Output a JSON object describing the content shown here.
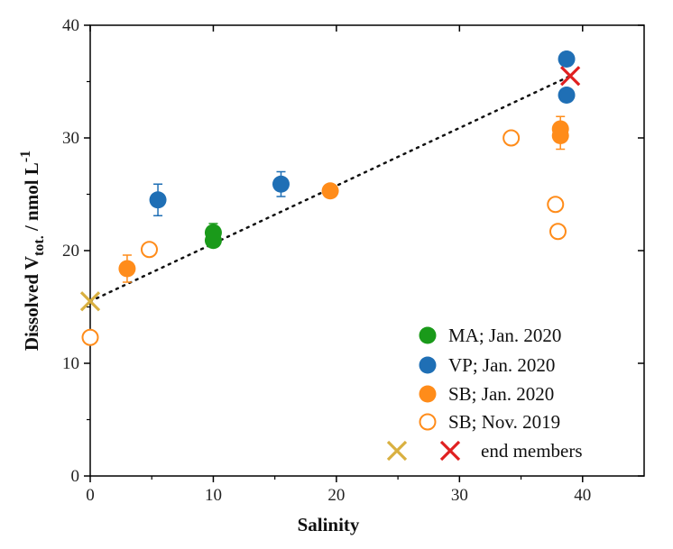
{
  "chart_data": {
    "type": "scatter",
    "xlabel": "Salinity",
    "ylabel": {
      "prefix": "Dissolved V",
      "subscript": "tot.",
      "suffix": " / nmol L",
      "superscript": "-1"
    },
    "xlim": [
      0,
      45
    ],
    "ylim": [
      0,
      40
    ],
    "xticks": [
      0,
      10,
      20,
      30,
      40
    ],
    "yticks": [
      0,
      10,
      20,
      30,
      40
    ],
    "grid": false,
    "legend_position": "bottom-right",
    "colors": {
      "MA": "#1a9a1a",
      "VP": "#1f6fb5",
      "SB": "#ff8c1a",
      "end_land": "#d9b040",
      "end_sea": "#e02020"
    },
    "series": [
      {
        "name": "MA; Jan. 2020",
        "marker": "filled-circle",
        "color": "#1a9a1a",
        "points": [
          {
            "x": 10.0,
            "y": 20.9,
            "err": 0.5
          },
          {
            "x": 10.0,
            "y": 21.6,
            "err": 0.8
          }
        ]
      },
      {
        "name": "VP; Jan. 2020",
        "marker": "filled-circle",
        "color": "#1f6fb5",
        "points": [
          {
            "x": 5.5,
            "y": 24.5,
            "err": 1.4
          },
          {
            "x": 15.5,
            "y": 25.9,
            "err": 1.1
          },
          {
            "x": 38.7,
            "y": 37.0,
            "err": 0.6
          },
          {
            "x": 38.7,
            "y": 33.8,
            "err": 0.4
          }
        ]
      },
      {
        "name": "SB; Jan. 2020",
        "marker": "filled-circle",
        "color": "#ff8c1a",
        "points": [
          {
            "x": 3.0,
            "y": 18.4,
            "err": 1.2
          },
          {
            "x": 19.5,
            "y": 25.3,
            "err": 0.3
          },
          {
            "x": 38.2,
            "y": 30.8,
            "err": 1.1
          },
          {
            "x": 38.2,
            "y": 30.2,
            "err": 1.2
          }
        ]
      },
      {
        "name": "SB; Nov. 2019",
        "marker": "open-circle",
        "color": "#ff8c1a",
        "points": [
          {
            "x": 0.0,
            "y": 12.3
          },
          {
            "x": 4.8,
            "y": 20.1
          },
          {
            "x": 34.2,
            "y": 30.0
          },
          {
            "x": 37.8,
            "y": 24.1
          },
          {
            "x": 38.0,
            "y": 21.7
          }
        ]
      },
      {
        "name": "end members",
        "marker": "cross",
        "points": [
          {
            "x": 0.0,
            "y": 15.5,
            "color": "#d9b040"
          },
          {
            "x": 39.0,
            "y": 35.5,
            "color": "#e02020"
          }
        ]
      }
    ],
    "mixing_line": {
      "style": "dotted",
      "from": [
        0.0,
        15.5
      ],
      "to": [
        39.0,
        35.5
      ]
    }
  }
}
